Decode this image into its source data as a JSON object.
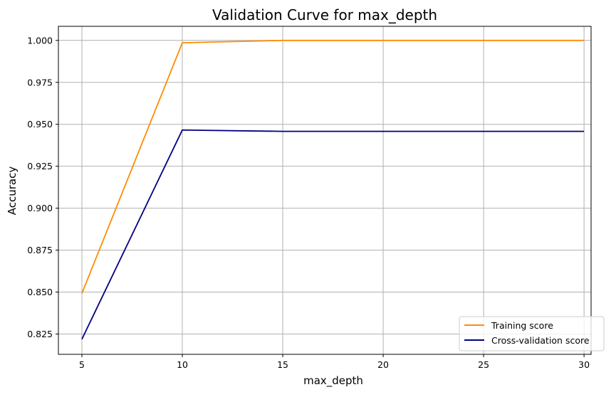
{
  "chart_data": {
    "type": "line",
    "title": "Validation Curve for max_depth",
    "xlabel": "max_depth",
    "ylabel": "Accuracy",
    "x": [
      5,
      10,
      15,
      20,
      25,
      30
    ],
    "series": [
      {
        "name": "Training score",
        "color": "#ff8c00",
        "values": [
          0.8492,
          0.9986,
          1.0,
          1.0,
          1.0,
          1.0
        ]
      },
      {
        "name": "Cross-validation score",
        "color": "#000080",
        "values": [
          0.8219,
          0.9466,
          0.9458,
          0.9458,
          0.9458,
          0.9458
        ]
      }
    ],
    "xlim": [
      3.83,
      30.35
    ],
    "ylim": [
      0.8129,
      1.0084
    ],
    "xticks": [
      "5",
      "10",
      "15",
      "20",
      "25",
      "30"
    ],
    "yticks": [
      "0.825",
      "0.850",
      "0.875",
      "0.900",
      "0.925",
      "0.950",
      "0.975",
      "1.000"
    ],
    "grid": true,
    "legend_position": "lower-right"
  }
}
